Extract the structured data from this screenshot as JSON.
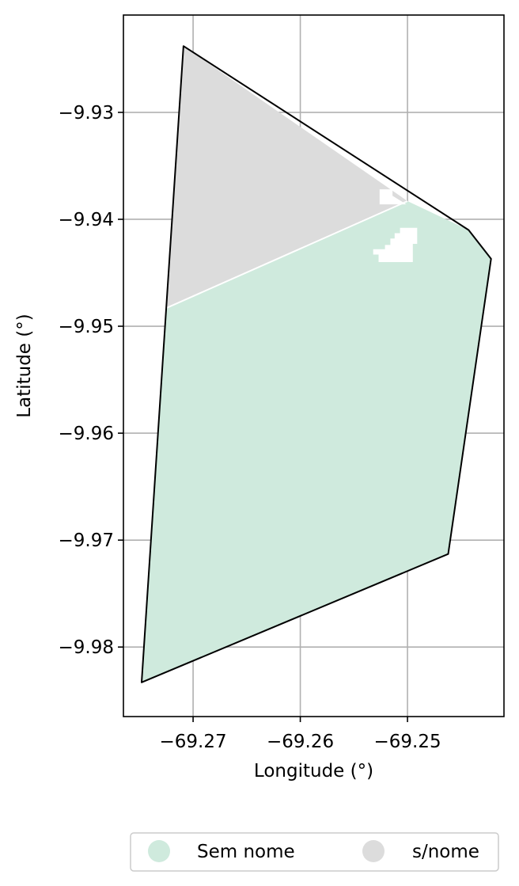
{
  "chart_data": {
    "type": "map",
    "xlabel": "Longitude (°)",
    "ylabel": "Latitude (°)",
    "xlim": [
      -69.2765,
      -69.241
    ],
    "ylim": [
      -9.9865,
      -9.9209
    ],
    "x_ticks": [
      -69.27,
      -69.26,
      -69.25
    ],
    "x_tick_labels": [
      "−69.27",
      "−69.26",
      "−69.25"
    ],
    "y_ticks": [
      -9.93,
      -9.94,
      -9.95,
      -9.96,
      -9.97,
      -9.98
    ],
    "y_tick_labels": [
      "−9.93",
      "−9.94",
      "−9.95",
      "−9.96",
      "−9.97",
      "−9.98"
    ],
    "grid": true,
    "legend_placement": "bottom-center",
    "regions": [
      {
        "name": "Sem nome",
        "color": "#cfeadd",
        "polygon": [
          [
            -69.2725,
            -9.9483
          ],
          [
            -69.25,
            -9.9383
          ],
          [
            -69.2443,
            -9.941
          ],
          [
            -69.2422,
            -9.9437
          ],
          [
            -69.2462,
            -9.9713
          ],
          [
            -69.2748,
            -9.9833
          ]
        ]
      },
      {
        "name": "s/nome",
        "color": "#dcdcdc",
        "polygon": [
          [
            -69.2709,
            -9.9238
          ],
          [
            -69.25,
            -9.9383
          ],
          [
            -69.2725,
            -9.9483
          ]
        ]
      }
    ],
    "holes": [
      {
        "color": "#ffffff",
        "polygon": [
          [
            -69.2526,
            -9.9372
          ],
          [
            -69.2514,
            -9.9372
          ],
          [
            -69.2514,
            -9.9378
          ],
          [
            -69.2501,
            -9.9386
          ],
          [
            -69.2526,
            -9.9386
          ]
        ]
      },
      {
        "color": "#ffffff",
        "polygon": [
          [
            -69.2507,
            -9.9408
          ],
          [
            -69.2491,
            -9.9408
          ],
          [
            -69.2491,
            -9.9423
          ],
          [
            -69.2495,
            -9.9423
          ],
          [
            -69.2495,
            -9.944
          ],
          [
            -69.2527,
            -9.944
          ],
          [
            -69.2527,
            -9.9433
          ],
          [
            -69.2532,
            -9.9433
          ],
          [
            -69.2532,
            -9.9428
          ],
          [
            -69.2521,
            -9.9428
          ],
          [
            -69.2521,
            -9.9424
          ],
          [
            -69.2516,
            -9.9424
          ],
          [
            -69.2516,
            -9.9418
          ],
          [
            -69.2512,
            -9.9418
          ],
          [
            -69.2512,
            -9.9413
          ],
          [
            -69.2507,
            -9.9413
          ]
        ]
      }
    ],
    "outline": [
      [
        -69.2709,
        -9.9238
      ],
      [
        -69.2443,
        -9.941
      ],
      [
        -69.2422,
        -9.9437
      ],
      [
        -69.2462,
        -9.9713
      ],
      [
        -69.2748,
        -9.9833
      ]
    ],
    "divider": [
      [
        -69.2725,
        -9.9483
      ],
      [
        -69.25,
        -9.9383
      ]
    ],
    "legend": [
      {
        "label": "Sem nome",
        "color": "#cfeadd"
      },
      {
        "label": "s/nome",
        "color": "#dcdcdc"
      }
    ]
  }
}
